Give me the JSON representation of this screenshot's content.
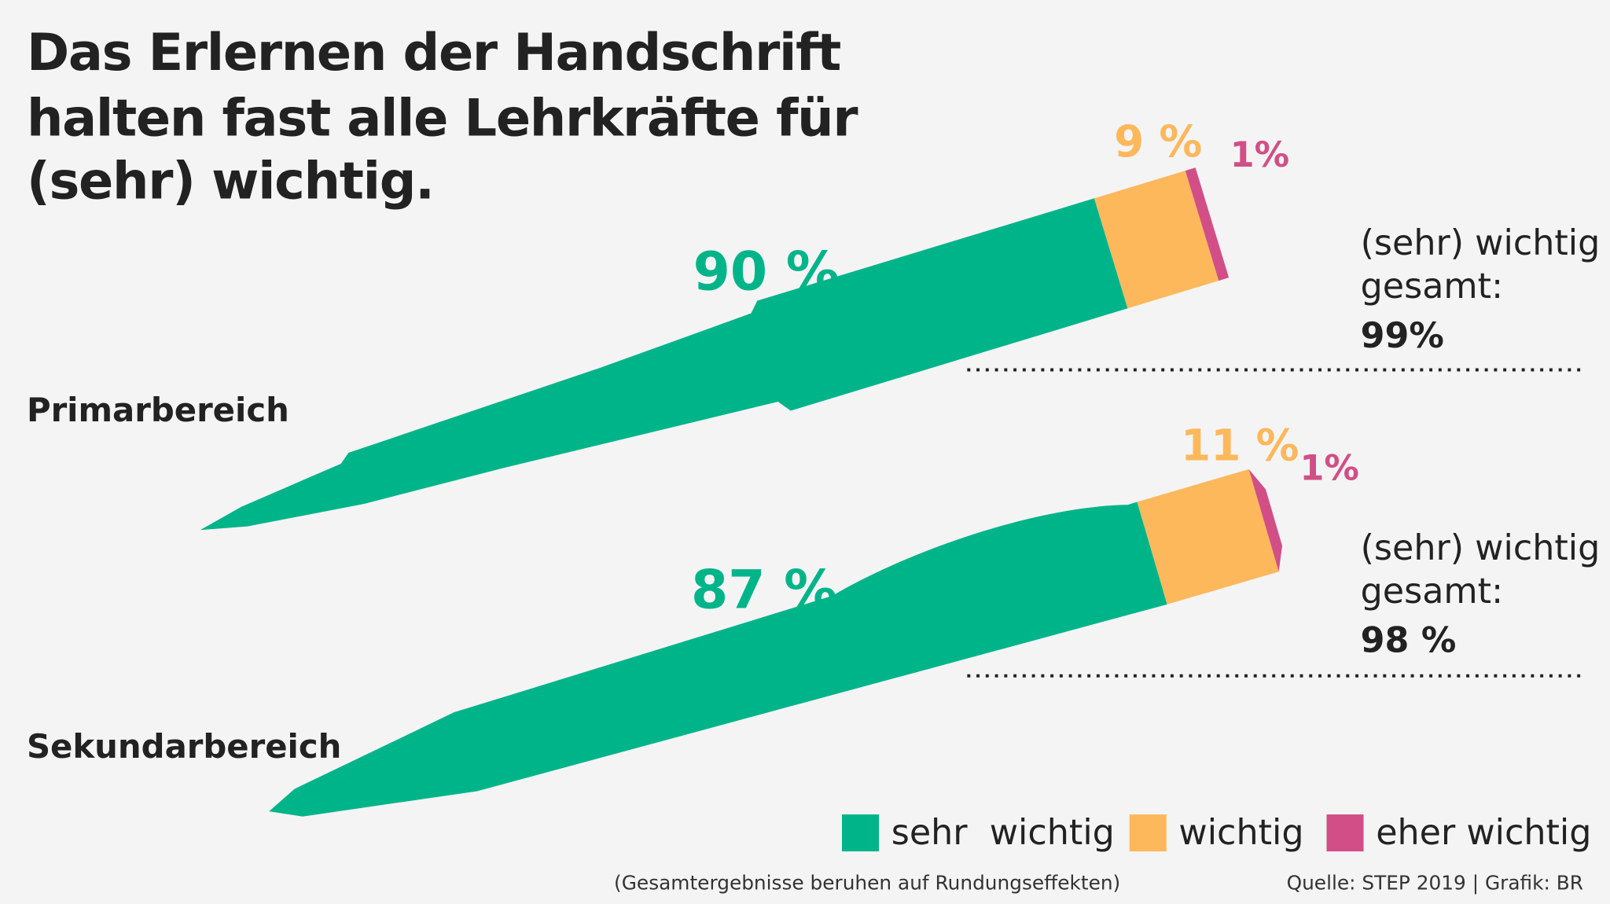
{
  "chart_data": {
    "type": "bar",
    "orientation": "horizontal",
    "stacked": true,
    "title": [
      "Das Erlernen der Handschrift",
      "halten fast alle Lehrkräfte für",
      "(sehr) wichtig."
    ],
    "categories": [
      "Primarbereich",
      "Sekundarbereich"
    ],
    "xlim": [
      0,
      100
    ],
    "series": [
      {
        "name": "sehr  wichtig",
        "color": "#00b48a",
        "values": [
          90,
          87
        ],
        "value_labels": [
          "90 %",
          "87 %"
        ]
      },
      {
        "name": "wichtig",
        "color": "#fdb85c",
        "values": [
          9,
          11
        ],
        "value_labels": [
          "9 %",
          "11 %"
        ]
      },
      {
        "name": "eher wichtig",
        "color": "#d14f86",
        "values": [
          1,
          1
        ],
        "value_labels": [
          "1%",
          "1%"
        ]
      }
    ],
    "total_label": [
      "(sehr) wichtig",
      "gesamt:"
    ],
    "totals": [
      "99%",
      "98 %"
    ],
    "footnote": "(Gesamtergebnisse beruhen auf Rundungseffekten)",
    "source": "Quelle: STEP 2019 | Grafik: BR"
  }
}
